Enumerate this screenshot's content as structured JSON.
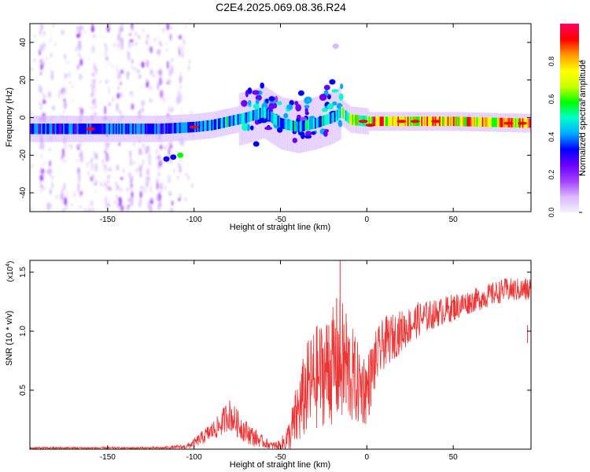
{
  "title": "C2E4.2025.069.08.36.R24",
  "colors": {
    "snr_line": "#ee3333",
    "frame": "#000000",
    "colormap": [
      "#f5f0ff",
      "#d9b8ff",
      "#a040ff",
      "#6a00ff",
      "#0000ff",
      "#00aaff",
      "#00ffcc",
      "#00ff00",
      "#ccff00",
      "#ffff00",
      "#ff9900",
      "#ff0000",
      "#ff0066"
    ]
  },
  "chart_data": [
    {
      "type": "heatmap",
      "name": "spectrogram",
      "xlabel": "Height of straight line (km)",
      "ylabel": "Frequency (Hz)",
      "xlim": [
        -195,
        95
      ],
      "ylim": [
        -50,
        50
      ],
      "xticks": [
        {
          "v": -150,
          "label": "-150"
        },
        {
          "v": -100,
          "label": "-100"
        },
        {
          "v": -50,
          "label": "-50"
        },
        {
          "v": 0,
          "label": "0"
        },
        {
          "v": 50,
          "label": "50"
        }
      ],
      "yticks": [
        {
          "v": -40,
          "label": "-40"
        },
        {
          "v": -20,
          "label": "-20"
        },
        {
          "v": 0,
          "label": "0"
        },
        {
          "v": 20,
          "label": "20"
        },
        {
          "v": 40,
          "label": "40"
        }
      ],
      "ridge": [
        {
          "x": -195,
          "f": -6
        },
        {
          "x": -150,
          "f": -6
        },
        {
          "x": -120,
          "f": -6
        },
        {
          "x": -100,
          "f": -5
        },
        {
          "x": -90,
          "f": -4
        },
        {
          "x": -80,
          "f": -2
        },
        {
          "x": -70,
          "f": 0
        },
        {
          "x": -60,
          "f": 3
        },
        {
          "x": -50,
          "f": -3
        },
        {
          "x": -40,
          "f": -5
        },
        {
          "x": -30,
          "f": -3
        },
        {
          "x": -20,
          "f": 0
        },
        {
          "x": -15,
          "f": 3
        },
        {
          "x": -10,
          "f": -1
        },
        {
          "x": 0,
          "f": -2
        },
        {
          "x": 20,
          "f": -2
        },
        {
          "x": 50,
          "f": -2
        },
        {
          "x": 95,
          "f": -3
        }
      ],
      "colorbar": {
        "label": "Normalized spectral amplitude",
        "range": [
          0,
          1
        ],
        "ticks": [
          {
            "v": 0,
            "label": "0.0"
          },
          {
            "v": 0.2,
            "label": "0.2"
          },
          {
            "v": 0.4,
            "label": "0.4"
          },
          {
            "v": 0.6,
            "label": "0.6"
          },
          {
            "v": 0.8,
            "label": "0.8"
          }
        ]
      }
    },
    {
      "type": "line",
      "name": "snr",
      "xlabel": "Height of straight line (km)",
      "ylabel": "SNR (10 * v/v)",
      "multiplier_label": "(x10",
      "multiplier_exp": "4",
      "multiplier_close": ")",
      "xlim": [
        -195,
        95
      ],
      "ylim": [
        0,
        1.6
      ],
      "xticks": [
        {
          "v": -150,
          "label": "-150"
        },
        {
          "v": -100,
          "label": "-100"
        },
        {
          "v": -50,
          "label": "-50"
        },
        {
          "v": 0,
          "label": "0"
        },
        {
          "v": 50,
          "label": "50"
        }
      ],
      "yticks": [
        {
          "v": 0.5,
          "label": "0.5"
        },
        {
          "v": 1.0,
          "label": "1.0"
        },
        {
          "v": 1.5,
          "label": "1.5"
        }
      ],
      "trend_x": [
        -195,
        -120,
        -105,
        -100,
        -95,
        -90,
        -85,
        -80,
        -75,
        -70,
        -65,
        -60,
        -55,
        -50,
        -45,
        -40,
        -35,
        -30,
        -25,
        -20,
        -15,
        -10,
        -5,
        0,
        5,
        10,
        15,
        20,
        25,
        30,
        40,
        50,
        60,
        70,
        80,
        90,
        95
      ],
      "trend_y": [
        0.01,
        0.01,
        0.02,
        0.05,
        0.1,
        0.15,
        0.2,
        0.3,
        0.22,
        0.15,
        0.1,
        0.06,
        0.03,
        0.03,
        0.1,
        0.3,
        0.5,
        0.6,
        0.65,
        0.7,
        0.75,
        0.65,
        0.55,
        0.5,
        0.75,
        0.9,
        0.95,
        1.0,
        1.05,
        1.1,
        1.15,
        1.2,
        1.25,
        1.3,
        1.35,
        1.35,
        1.35
      ],
      "amp_y": [
        0.01,
        0.01,
        0.02,
        0.04,
        0.06,
        0.08,
        0.1,
        0.14,
        0.12,
        0.1,
        0.08,
        0.05,
        0.03,
        0.05,
        0.15,
        0.3,
        0.4,
        0.45,
        0.45,
        0.5,
        0.55,
        0.45,
        0.35,
        0.3,
        0.25,
        0.22,
        0.2,
        0.18,
        0.16,
        0.15,
        0.12,
        0.12,
        0.1,
        0.1,
        0.1,
        0.1,
        0.12
      ],
      "spikes": [
        {
          "x": -15.5,
          "y": 1.6
        },
        {
          "x": -17.5,
          "y": 1.28
        },
        {
          "x": -12,
          "y": 1.15
        },
        {
          "x": -22,
          "y": 1.05
        },
        {
          "x": 93,
          "y": 0.9
        }
      ]
    }
  ]
}
